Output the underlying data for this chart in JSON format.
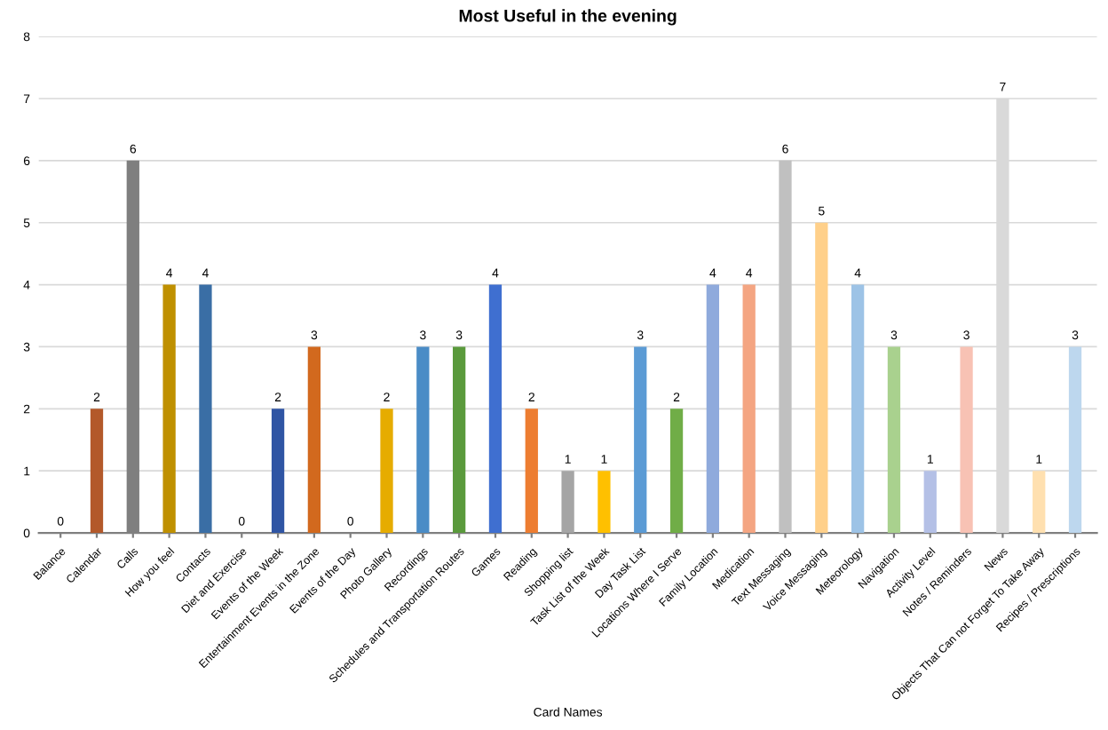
{
  "chart_data": {
    "type": "bar",
    "title": "Most Useful in the evening",
    "xlabel": "Card Names",
    "categories": [
      "Balance",
      "Calendar",
      "Calls",
      "How you feel",
      "Contacts",
      "Diet and Exercise",
      "Events of the Week",
      "Entertainment Events in the Zone",
      "Events of the Day",
      "Photo Gallery",
      "Recordings",
      "Schedules and Transportation Routes",
      "Games",
      "Reading",
      "Shopping list",
      "Task List of the Week",
      "Day Task List",
      "Locations Where I Serve",
      "Family Location",
      "Medication",
      "Text Messaging",
      "Voice Messaging",
      "Meteorology",
      "Navigation",
      "Activity Level",
      "Notes / Reminders",
      "News",
      "Objects That Can not Forget To Take Away",
      "Recipes / Prescriptions"
    ],
    "values": [
      0,
      2,
      6,
      4,
      4,
      0,
      2,
      3,
      0,
      2,
      3,
      3,
      4,
      2,
      1,
      1,
      3,
      2,
      4,
      4,
      6,
      5,
      4,
      3,
      1,
      3,
      7,
      1,
      3
    ],
    "colors": [
      "#4472c4",
      "#b3592a",
      "#7f7f7f",
      "#bf9000",
      "#3a6ea5",
      "#5b9bd5",
      "#2f55a4",
      "#d2691e",
      "#a5a5a5",
      "#e6ac00",
      "#4a8cc6",
      "#5a9a3c",
      "#3f6fd0",
      "#ed7d31",
      "#a5a5a5",
      "#ffc000",
      "#5b9bd5",
      "#70ad47",
      "#8faadc",
      "#f4a582",
      "#c0c0c0",
      "#ffd08a",
      "#9dc3e6",
      "#a9d18e",
      "#b4c0e6",
      "#f8c2b4",
      "#d9d9d9",
      "#ffe0b0",
      "#bdd7ee"
    ],
    "ylim": [
      0,
      8
    ],
    "yticks": [
      0,
      1,
      2,
      3,
      4,
      5,
      6,
      7,
      8
    ],
    "grid": "y",
    "data_labels": true
  }
}
